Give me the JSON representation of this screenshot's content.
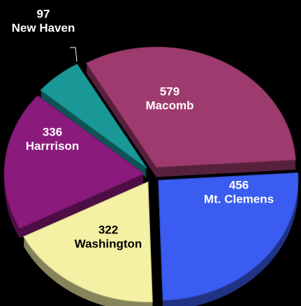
{
  "chart_data": {
    "type": "pie",
    "categories": [
      "Macomb",
      "Mt. Clemens",
      "Washington",
      "Harrrison",
      "New Haven"
    ],
    "values": [
      579,
      456,
      322,
      336,
      97
    ],
    "colors": [
      "#9e3b6e",
      "#3a5cf0",
      "#f4f0a4",
      "#8a1a7c",
      "#1a9898"
    ]
  }
}
